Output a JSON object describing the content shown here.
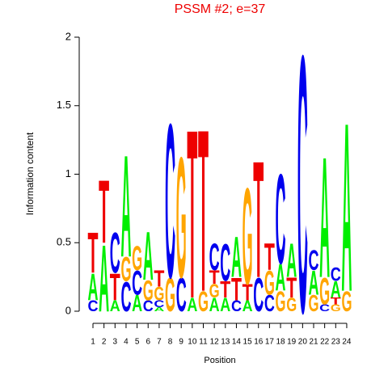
{
  "chart_data": {
    "type": "logo",
    "title": "PSSM #2; e=37",
    "xlabel": "Position",
    "ylabel": "Information content",
    "categories": [
      "1",
      "2",
      "3",
      "4",
      "5",
      "6",
      "7",
      "8",
      "9",
      "10",
      "11",
      "12",
      "13",
      "14",
      "15",
      "16",
      "17",
      "18",
      "19",
      "20",
      "21",
      "22",
      "23",
      "24"
    ],
    "ylim": [
      0,
      2
    ],
    "yticks": [
      0,
      0.5,
      1,
      1.5,
      2
    ],
    "colors": {
      "A": "#00ee00",
      "C": "#0000ee",
      "G": "#ffa500",
      "T": "#ee0000"
    },
    "stacks": [
      [
        {
          "letter": "C",
          "height": 0.08
        },
        {
          "letter": "A",
          "height": 0.2
        },
        {
          "letter": "T",
          "height": 0.3
        }
      ],
      [
        {
          "letter": "A",
          "height": 0.5
        },
        {
          "letter": "T",
          "height": 0.47
        }
      ],
      [
        {
          "letter": "A",
          "height": 0.08
        },
        {
          "letter": "T",
          "height": 0.2
        },
        {
          "letter": "C",
          "height": 0.3
        }
      ],
      [
        {
          "letter": "C",
          "height": 0.22
        },
        {
          "letter": "G",
          "height": 0.18
        },
        {
          "letter": "A",
          "height": 0.76
        }
      ],
      [
        {
          "letter": "A",
          "height": 0.12
        },
        {
          "letter": "C",
          "height": 0.18
        },
        {
          "letter": "G",
          "height": 0.18
        }
      ],
      [
        {
          "letter": "C",
          "height": 0.08
        },
        {
          "letter": "G",
          "height": 0.15
        },
        {
          "letter": "A",
          "height": 0.36
        }
      ],
      [
        {
          "letter": "A",
          "height": 0.03
        },
        {
          "letter": "C",
          "height": 0.05
        },
        {
          "letter": "G",
          "height": 0.1
        },
        {
          "letter": "T",
          "height": 0.12
        }
      ],
      [
        {
          "letter": "G",
          "height": 0.25
        },
        {
          "letter": "C",
          "height": 1.15
        }
      ],
      [
        {
          "letter": "C",
          "height": 0.25
        },
        {
          "letter": "G",
          "height": 0.9
        }
      ],
      [
        {
          "letter": "A",
          "height": 0.1
        },
        {
          "letter": "T",
          "height": 1.26
        }
      ],
      [
        {
          "letter": "G",
          "height": 0.15
        },
        {
          "letter": "T",
          "height": 1.21
        }
      ],
      [
        {
          "letter": "A",
          "height": 0.1
        },
        {
          "letter": "G",
          "height": 0.1
        },
        {
          "letter": "T",
          "height": 0.1
        },
        {
          "letter": "C",
          "height": 0.2
        }
      ],
      [
        {
          "letter": "A",
          "height": 0.1
        },
        {
          "letter": "T",
          "height": 0.12
        },
        {
          "letter": "C",
          "height": 0.28
        }
      ],
      [
        {
          "letter": "C",
          "height": 0.08
        },
        {
          "letter": "T",
          "height": 0.17
        },
        {
          "letter": "A",
          "height": 0.3
        }
      ],
      [
        {
          "letter": "A",
          "height": 0.08
        },
        {
          "letter": "T",
          "height": 0.12
        },
        {
          "letter": "G",
          "height": 0.72
        }
      ],
      [
        {
          "letter": "C",
          "height": 0.25
        },
        {
          "letter": "T",
          "height": 0.87
        }
      ],
      [
        {
          "letter": "C",
          "height": 0.12
        },
        {
          "letter": "G",
          "height": 0.18
        },
        {
          "letter": "T",
          "height": 0.2
        }
      ],
      [
        {
          "letter": "G",
          "height": 0.15
        },
        {
          "letter": "A",
          "height": 0.2
        },
        {
          "letter": "C",
          "height": 0.67
        }
      ],
      [
        {
          "letter": "G",
          "height": 0.1
        },
        {
          "letter": "T",
          "height": 0.15
        },
        {
          "letter": "A",
          "height": 0.25
        }
      ],
      [
        {
          "letter": "C",
          "height": 1.92
        }
      ],
      [
        {
          "letter": "G",
          "height": 0.12
        },
        {
          "letter": "A",
          "height": 0.18
        },
        {
          "letter": "C",
          "height": 0.15
        }
      ],
      [
        {
          "letter": "C",
          "height": 0.05
        },
        {
          "letter": "G",
          "height": 0.2
        },
        {
          "letter": "A",
          "height": 0.9
        }
      ],
      [
        {
          "letter": "G",
          "height": 0.05
        },
        {
          "letter": "T",
          "height": 0.05
        },
        {
          "letter": "A",
          "height": 0.12
        },
        {
          "letter": "C",
          "height": 0.1
        }
      ],
      [
        {
          "letter": "G",
          "height": 0.15
        },
        {
          "letter": "A",
          "height": 1.26
        }
      ]
    ]
  }
}
